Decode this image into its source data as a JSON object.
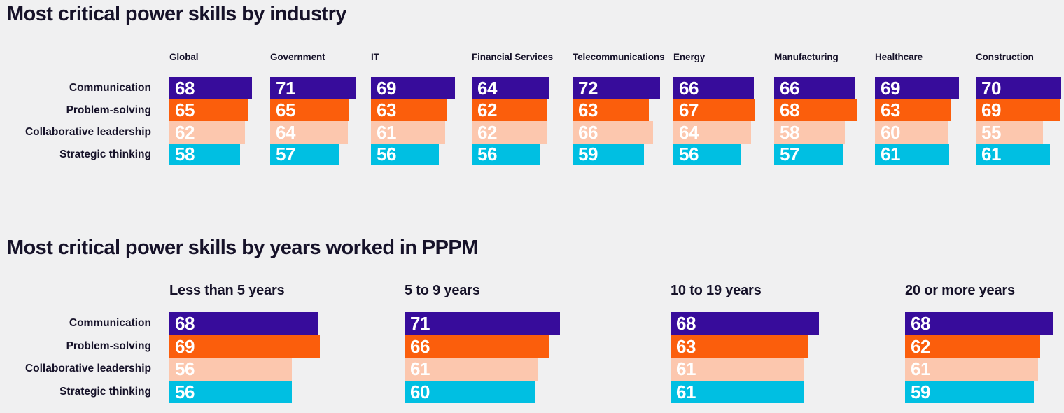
{
  "page": {
    "background_color": "#f0f0f1",
    "text_color": "#161229",
    "value_label_color": "#ffffff"
  },
  "chart_data": [
    {
      "type": "bar",
      "orientation": "horizontal",
      "title": "Most critical power skills by industry",
      "categories": [
        "Communication",
        "Problem-solving",
        "Collaborative leadership",
        "Strategic thinking"
      ],
      "series_colors": [
        "#370c9b",
        "#fb5e0c",
        "#fcc7ae",
        "#00bfe2"
      ],
      "value_labels": true,
      "grid": false,
      "legend": false,
      "xlim": [
        0,
        72
      ],
      "groups": [
        {
          "label": "Global",
          "values": [
            68,
            65,
            62,
            58
          ]
        },
        {
          "label": "Government",
          "values": [
            71,
            65,
            64,
            57
          ]
        },
        {
          "label": "IT",
          "values": [
            69,
            63,
            61,
            56
          ]
        },
        {
          "label": "Financial Services",
          "values": [
            64,
            62,
            62,
            56
          ]
        },
        {
          "label": "Telecommunications",
          "values": [
            72,
            63,
            66,
            59
          ]
        },
        {
          "label": "Energy",
          "values": [
            66,
            67,
            64,
            56
          ]
        },
        {
          "label": "Manufacturing",
          "values": [
            66,
            68,
            58,
            57
          ]
        },
        {
          "label": "Healthcare",
          "values": [
            69,
            63,
            60,
            61
          ]
        },
        {
          "label": "Construction",
          "values": [
            70,
            69,
            55,
            61
          ]
        }
      ]
    },
    {
      "type": "bar",
      "orientation": "horizontal",
      "title": "Most critical power skills by years worked in PPPM",
      "categories": [
        "Communication",
        "Problem-solving",
        "Collaborative leadership",
        "Strategic thinking"
      ],
      "series_colors": [
        "#370c9b",
        "#fb5e0c",
        "#fcc7ae",
        "#00bfe2"
      ],
      "value_labels": true,
      "grid": false,
      "legend": false,
      "xlim": [
        0,
        72
      ],
      "groups": [
        {
          "label": "Less than 5 years",
          "values": [
            68,
            69,
            56,
            56
          ]
        },
        {
          "label": "5 to 9 years",
          "values": [
            71,
            66,
            61,
            60
          ]
        },
        {
          "label": "10 to 19 years",
          "values": [
            68,
            63,
            61,
            61
          ]
        },
        {
          "label": "20 or more years",
          "values": [
            68,
            62,
            61,
            59
          ]
        }
      ]
    }
  ]
}
